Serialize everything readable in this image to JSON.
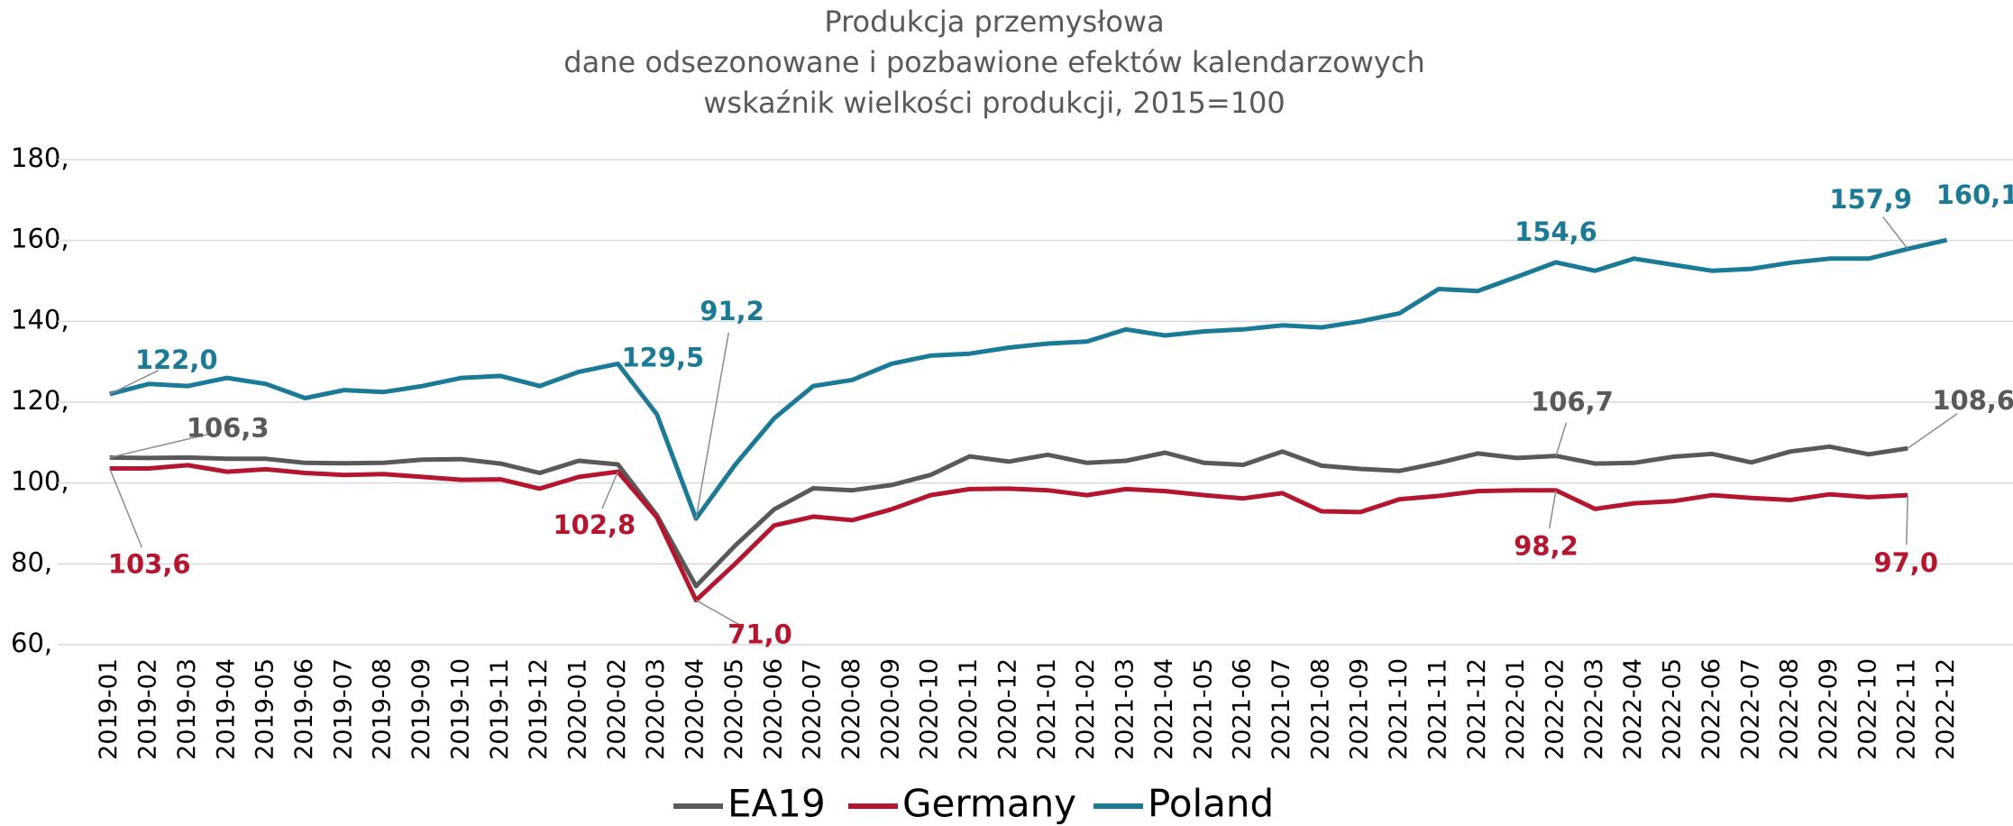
{
  "chart_data": {
    "type": "line",
    "title": "Produkcja przemysłowa",
    "subtitle": [
      "dane odsezonowane i pozbawione efektów kalendarzowych",
      "wskaźnik wielkości produkcji, 2015=100"
    ],
    "categories": [
      "2019-01",
      "2019-02",
      "2019-03",
      "2019-04",
      "2019-05",
      "2019-06",
      "2019-07",
      "2019-08",
      "2019-09",
      "2019-10",
      "2019-11",
      "2019-12",
      "2020-01",
      "2020-02",
      "2020-03",
      "2020-04",
      "2020-05",
      "2020-06",
      "2020-07",
      "2020-08",
      "2020-09",
      "2020-10",
      "2020-11",
      "2020-12",
      "2021-01",
      "2021-02",
      "2021-03",
      "2021-04",
      "2021-05",
      "2021-06",
      "2021-07",
      "2021-08",
      "2021-09",
      "2021-10",
      "2021-11",
      "2021-12",
      "2022-01",
      "2022-02",
      "2022-03",
      "2022-04",
      "2022-05",
      "2022-06",
      "2022-07",
      "2022-08",
      "2022-09",
      "2022-10",
      "2022-11",
      "2022-12"
    ],
    "series": [
      {
        "name": "EA19",
        "color": "#595959",
        "values": [
          106.3,
          106.2,
          106.3,
          106,
          106,
          105,
          104.9,
          105,
          105.8,
          105.9,
          104.8,
          102.5,
          105.5,
          104.6,
          92,
          74.5,
          84.5,
          93.5,
          98.7,
          98.2,
          99.5,
          102,
          106.6,
          105.3,
          107,
          105,
          105.5,
          107.5,
          105,
          104.5,
          107.8,
          104.3,
          103.5,
          103,
          105,
          107.3,
          106.2,
          106.7,
          104.8,
          105,
          106.5,
          107.2,
          105.1,
          107.8,
          109,
          107.1,
          108.6,
          null
        ],
        "value_labels": [
          "106,3",
          null,
          null,
          null,
          null,
          null,
          null,
          null,
          null,
          null,
          null,
          null,
          null,
          null,
          null,
          null,
          null,
          null,
          null,
          null,
          null,
          null,
          null,
          null,
          null,
          null,
          null,
          null,
          null,
          null,
          null,
          null,
          null,
          null,
          null,
          null,
          null,
          "106,7",
          null,
          null,
          null,
          null,
          null,
          null,
          null,
          null,
          "108,6",
          null
        ]
      },
      {
        "name": "Germany",
        "color": "#b5162f",
        "values": [
          103.6,
          103.6,
          104.4,
          102.8,
          103.4,
          102.5,
          102,
          102.2,
          101.5,
          100.8,
          100.9,
          98.6,
          101.5,
          102.8,
          91.5,
          71.0,
          80,
          89.5,
          91.7,
          90.8,
          93.5,
          97,
          98.5,
          98.6,
          98.2,
          97,
          98.5,
          98,
          97,
          96.2,
          97.5,
          93,
          92.8,
          96,
          96.8,
          98,
          98.2,
          98.2,
          93.6,
          95,
          95.5,
          97,
          96.3,
          95.8,
          97.2,
          96.5,
          97.0,
          null
        ],
        "value_labels": [
          "103,6",
          null,
          null,
          null,
          null,
          null,
          null,
          null,
          null,
          null,
          null,
          null,
          null,
          "102,8",
          null,
          "71,0",
          null,
          null,
          null,
          null,
          null,
          null,
          null,
          null,
          null,
          null,
          null,
          null,
          null,
          null,
          null,
          null,
          null,
          null,
          null,
          null,
          null,
          "98,2",
          null,
          null,
          null,
          null,
          null,
          null,
          null,
          null,
          "97,0",
          null
        ]
      },
      {
        "name": "Poland",
        "color": "#1b7a96",
        "values": [
          122.0,
          124.5,
          124,
          126,
          124.5,
          121,
          123,
          122.5,
          124,
          126,
          126.5,
          124,
          127.5,
          129.5,
          117,
          91.2,
          104.5,
          116,
          124,
          125.5,
          129.5,
          131.5,
          132,
          133.5,
          134.5,
          135,
          138,
          136.5,
          137.5,
          138,
          139,
          138.5,
          140,
          142,
          148,
          147.5,
          151,
          154.6,
          152.5,
          155.5,
          154,
          152.5,
          153,
          154.5,
          155.5,
          155.5,
          157.9,
          160.1
        ],
        "value_labels": [
          "122,0",
          null,
          null,
          null,
          null,
          null,
          null,
          null,
          null,
          null,
          null,
          null,
          null,
          "129,5",
          null,
          "91,2",
          null,
          null,
          null,
          null,
          null,
          null,
          null,
          null,
          null,
          null,
          null,
          null,
          null,
          null,
          null,
          null,
          null,
          null,
          null,
          null,
          null,
          "154,6",
          null,
          null,
          null,
          null,
          null,
          null,
          null,
          null,
          "157,9",
          "160,1"
        ]
      }
    ],
    "ylim": [
      60,
      180
    ],
    "yticks": [
      {
        "value": 60,
        "label": "60,"
      },
      {
        "value": 80,
        "label": "80,"
      },
      {
        "value": 100,
        "label": "100,"
      },
      {
        "value": 120,
        "label": "120,"
      },
      {
        "value": 140,
        "label": "140,"
      },
      {
        "value": 160,
        "label": "160,"
      },
      {
        "value": 180,
        "label": "180,"
      }
    ],
    "grid": true,
    "legend": "bottom"
  }
}
